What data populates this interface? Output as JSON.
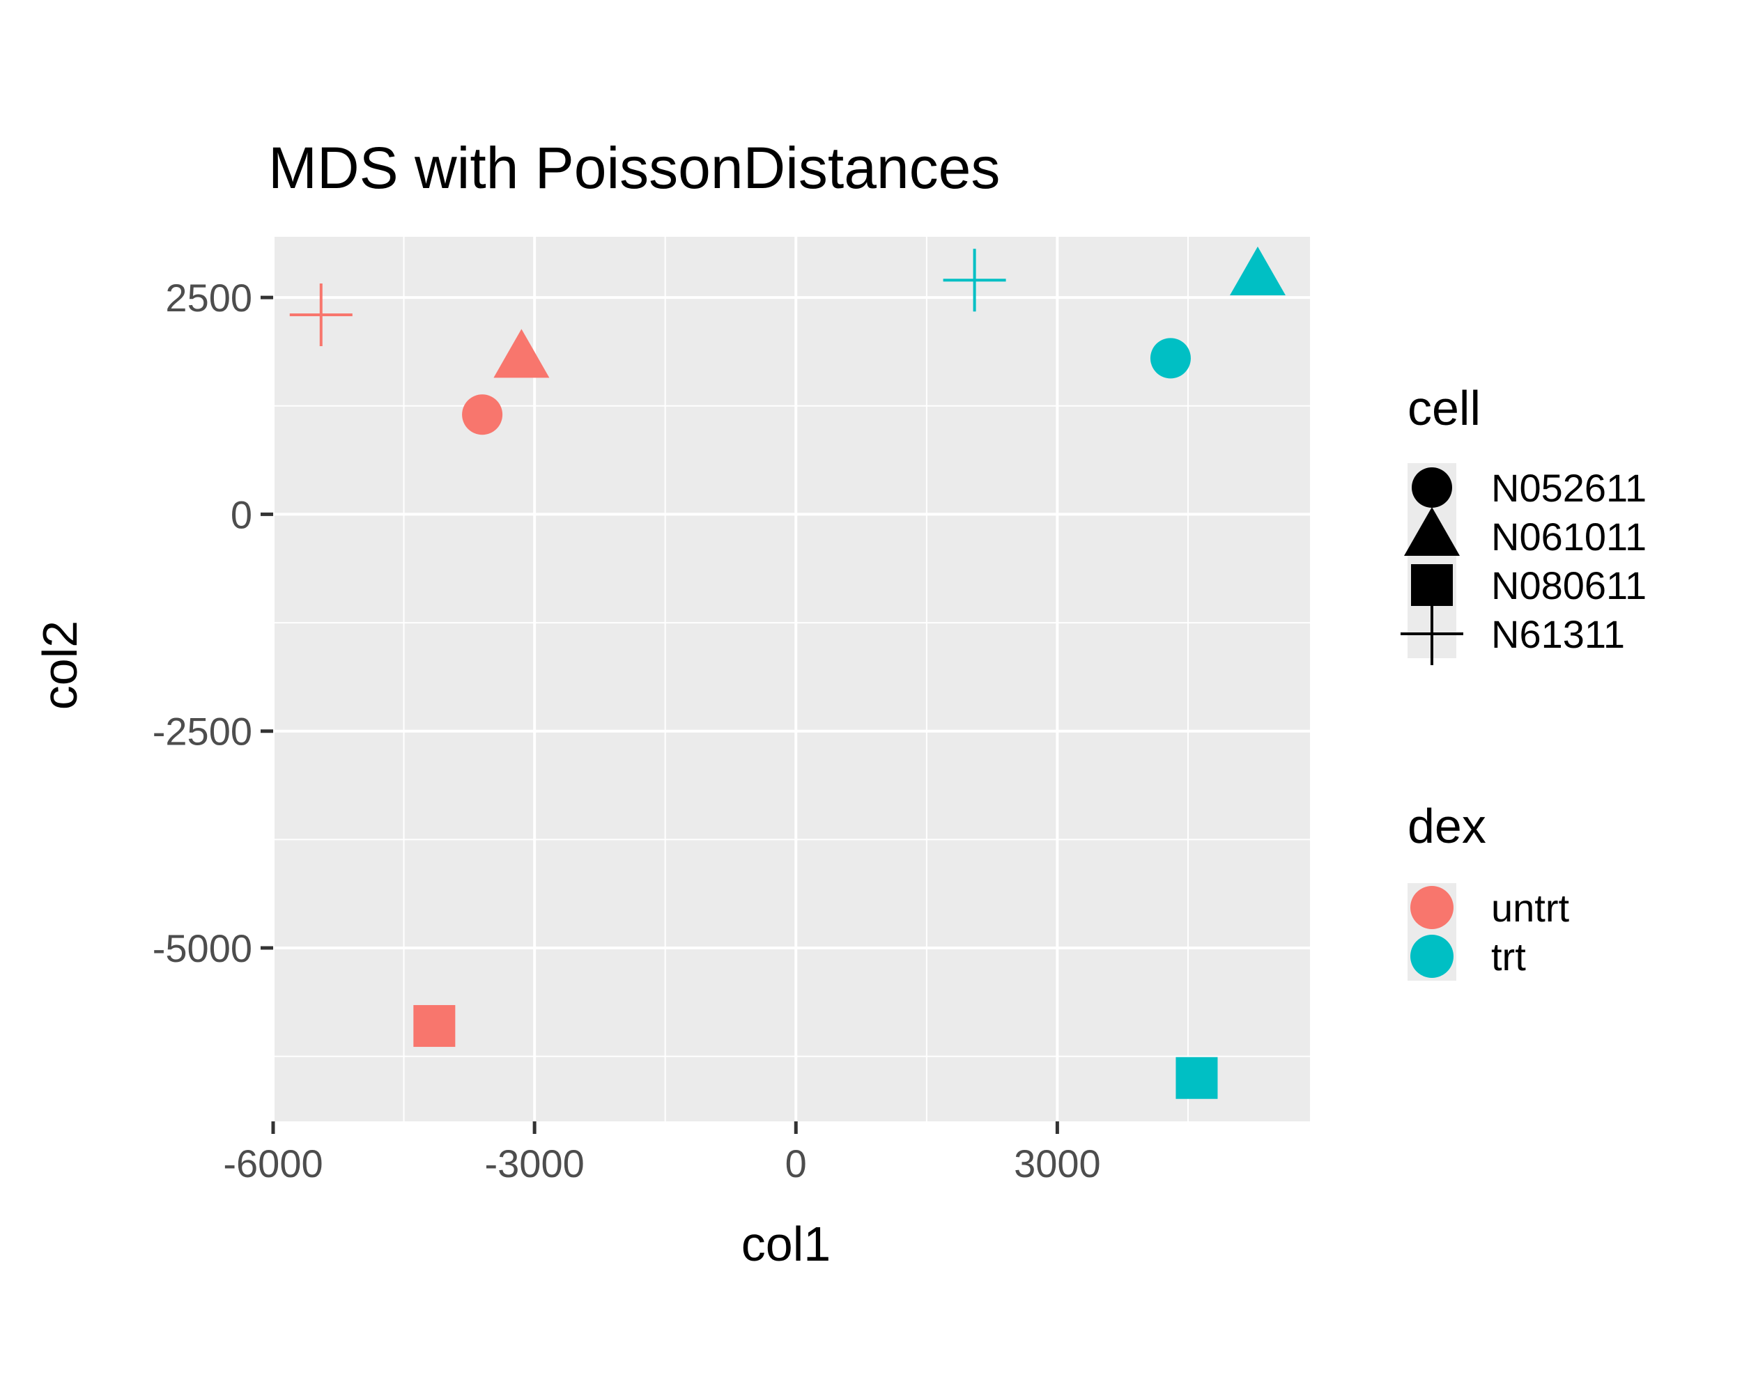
{
  "chart_data": {
    "type": "scatter",
    "title": "MDS with PoissonDistances",
    "xlabel": "col1",
    "ylabel": "col2",
    "xlim": [
      -6000,
      5900
    ],
    "ylim": [
      -7000,
      3200
    ],
    "x_ticks": [
      -6000,
      -3000,
      0,
      3000
    ],
    "x_tick_labels": [
      "-6000",
      "-3000",
      "0",
      "3000"
    ],
    "y_ticks": [
      2500,
      0,
      -2500,
      -5000
    ],
    "y_tick_labels": [
      "2500",
      "0",
      "-2500",
      "-5000"
    ],
    "grid": true,
    "legend_position": "right",
    "legends": {
      "cell": {
        "title": "cell",
        "entries": [
          {
            "label": "N052611",
            "shape": "circle"
          },
          {
            "label": "N061011",
            "shape": "triangle"
          },
          {
            "label": "N080611",
            "shape": "square"
          },
          {
            "label": "N61311",
            "shape": "plus"
          }
        ]
      },
      "dex": {
        "title": "dex",
        "entries": [
          {
            "label": "untrt",
            "color": "#F8766D"
          },
          {
            "label": "trt",
            "color": "#00BFC4"
          }
        ]
      }
    },
    "points": [
      {
        "cell": "N052611",
        "dex": "untrt",
        "x": -3600,
        "y": 1150
      },
      {
        "cell": "N061011",
        "dex": "untrt",
        "x": -3150,
        "y": 1800
      },
      {
        "cell": "N080611",
        "dex": "untrt",
        "x": -4150,
        "y": -5900
      },
      {
        "cell": "N61311",
        "dex": "untrt",
        "x": -5450,
        "y": 2300
      },
      {
        "cell": "N052611",
        "dex": "trt",
        "x": 4300,
        "y": 1800
      },
      {
        "cell": "N061011",
        "dex": "trt",
        "x": 5300,
        "y": 2750
      },
      {
        "cell": "N080611",
        "dex": "trt",
        "x": 4600,
        "y": -6500
      },
      {
        "cell": "N61311",
        "dex": "trt",
        "x": 2050,
        "y": 2700
      }
    ],
    "colors": {
      "untrt": "#F8766D",
      "trt": "#00BFC4",
      "panel": "#EBEBEB",
      "grid": "#FFFFFF"
    }
  }
}
